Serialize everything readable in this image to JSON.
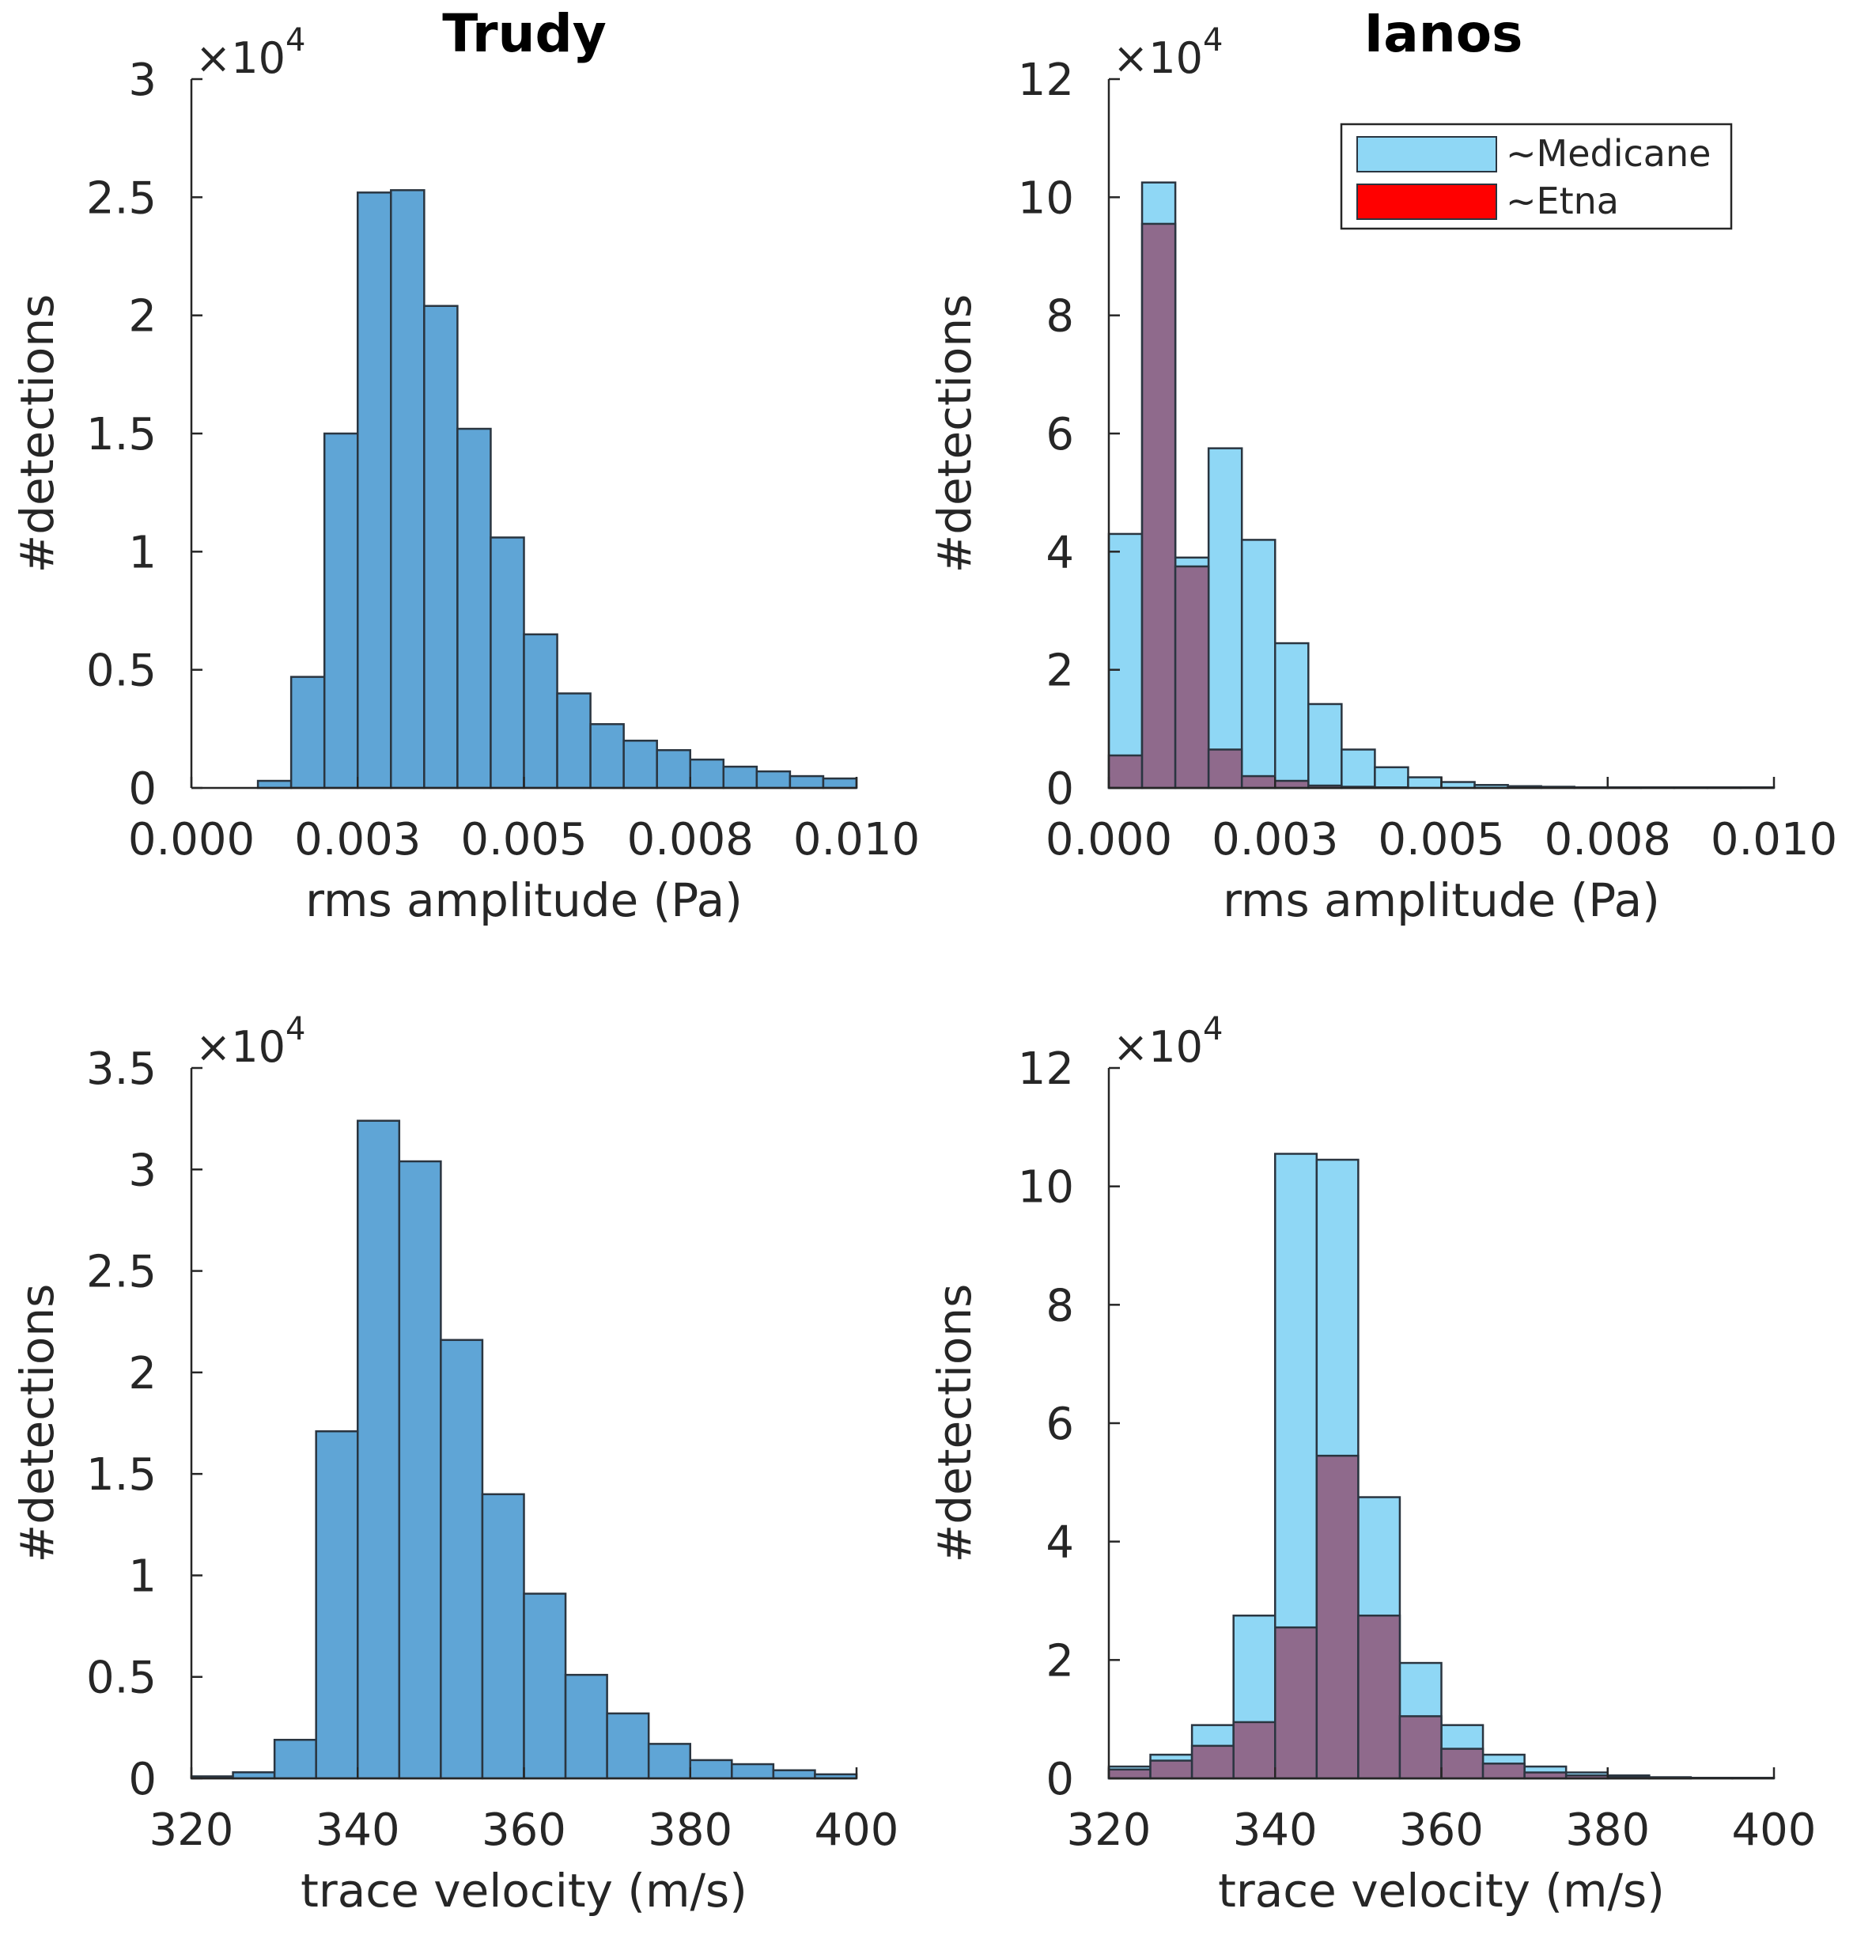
{
  "figure": {
    "titles": [
      "Trudy",
      "Ianos"
    ],
    "colors": {
      "trudy_bar": "#5fa5d6",
      "medicane_bar": "#8fd7f5",
      "etna_bar": "#ff0000",
      "overlap": "#8f6a8c",
      "edge": "#2a3540",
      "axis": "#262626"
    }
  },
  "chart_data": [
    {
      "id": "trudy-rms",
      "type": "bar",
      "title": "Trudy",
      "xlabel": "rms amplitude (Pa)",
      "ylabel": "#detections",
      "exponent_label": "×10^4",
      "exponent_base": "×10",
      "exponent_power": "4",
      "xlim": [
        0,
        0.01
      ],
      "ylim": [
        0,
        3
      ],
      "xticks": [
        0,
        0.0025,
        0.005,
        0.0075,
        0.01
      ],
      "xtick_labels": [
        "0.000",
        "0.003",
        "0.005",
        "0.008",
        "0.010"
      ],
      "yticks": [
        0,
        0.5,
        1,
        1.5,
        2,
        2.5,
        3
      ],
      "ytick_labels": [
        "0",
        "0.5",
        "1",
        "1.5",
        "2",
        "2.5",
        "3"
      ],
      "bin_width": 0.0005,
      "series": [
        {
          "name": "Trudy",
          "bin_start": 0.001,
          "values": [
            0.03,
            0.47,
            1.5,
            2.52,
            2.53,
            2.04,
            1.52,
            1.06,
            0.65,
            0.4,
            0.27,
            0.2,
            0.16,
            0.12,
            0.09,
            0.07,
            0.05,
            0.04
          ]
        }
      ]
    },
    {
      "id": "ianos-rms",
      "type": "bar",
      "title": "Ianos",
      "xlabel": "rms amplitude (Pa)",
      "ylabel": "#detections",
      "exponent_label": "×10^4",
      "exponent_base": "×10",
      "exponent_power": "4",
      "xlim": [
        0,
        0.01
      ],
      "ylim": [
        0,
        12
      ],
      "xticks": [
        0,
        0.0025,
        0.005,
        0.0075,
        0.01
      ],
      "xtick_labels": [
        "0.000",
        "0.003",
        "0.005",
        "0.008",
        "0.010"
      ],
      "yticks": [
        0,
        2,
        4,
        6,
        8,
        10,
        12
      ],
      "ytick_labels": [
        "0",
        "2",
        "4",
        "6",
        "8",
        "10",
        "12"
      ],
      "bin_width": 0.0005,
      "legend": {
        "location": "top-right",
        "entries": [
          "~Medicane",
          "~Etna"
        ]
      },
      "series": [
        {
          "name": "~Medicane",
          "bin_start": 0.0,
          "values": [
            4.3,
            10.25,
            3.9,
            5.75,
            4.2,
            2.45,
            1.42,
            0.65,
            0.35,
            0.18,
            0.1,
            0.05,
            0.03,
            0.02,
            0.01,
            0.01,
            0.01,
            0.01,
            0.01,
            0.01
          ]
        },
        {
          "name": "~Etna",
          "bin_start": 0.0,
          "values": [
            0.55,
            9.55,
            3.75,
            0.65,
            0.2,
            0.12,
            0.04,
            0.02,
            0.01,
            0,
            0,
            0,
            0,
            0,
            0,
            0,
            0,
            0,
            0,
            0
          ]
        }
      ]
    },
    {
      "id": "trudy-velocity",
      "type": "bar",
      "title": "",
      "xlabel": "trace velocity (m/s)",
      "ylabel": "#detections",
      "exponent_label": "×10^4",
      "exponent_base": "×10",
      "exponent_power": "4",
      "xlim": [
        320,
        400
      ],
      "ylim": [
        0,
        3.5
      ],
      "xticks": [
        320,
        340,
        360,
        380,
        400
      ],
      "xtick_labels": [
        "320",
        "340",
        "360",
        "380",
        "400"
      ],
      "yticks": [
        0,
        0.5,
        1,
        1.5,
        2,
        2.5,
        3,
        3.5
      ],
      "ytick_labels": [
        "0",
        "0.5",
        "1",
        "1.5",
        "2",
        "2.5",
        "3",
        "3.5"
      ],
      "bin_width": 5,
      "series": [
        {
          "name": "Trudy",
          "bin_start": 320,
          "values": [
            0.01,
            0.03,
            0.19,
            1.71,
            3.24,
            3.04,
            2.16,
            1.4,
            0.91,
            0.51,
            0.32,
            0.17,
            0.09,
            0.07,
            0.04,
            0.02
          ]
        }
      ]
    },
    {
      "id": "ianos-velocity",
      "type": "bar",
      "title": "",
      "xlabel": "trace velocity (m/s)",
      "ylabel": "#detections",
      "exponent_label": "×10^4",
      "exponent_base": "×10",
      "exponent_power": "4",
      "xlim": [
        320,
        400
      ],
      "ylim": [
        0,
        12
      ],
      "xticks": [
        320,
        340,
        360,
        380,
        400
      ],
      "xtick_labels": [
        "320",
        "340",
        "360",
        "380",
        "400"
      ],
      "yticks": [
        0,
        2,
        4,
        6,
        8,
        10,
        12
      ],
      "ytick_labels": [
        "0",
        "2",
        "4",
        "6",
        "8",
        "10",
        "12"
      ],
      "bin_width": 5,
      "series": [
        {
          "name": "~Medicane",
          "bin_start": 320,
          "values": [
            0.2,
            0.4,
            0.9,
            2.75,
            10.55,
            10.45,
            4.75,
            1.95,
            0.9,
            0.4,
            0.2,
            0.1,
            0.05,
            0.02,
            0.01,
            0.01
          ]
        },
        {
          "name": "~Etna",
          "bin_start": 320,
          "values": [
            0.15,
            0.3,
            0.55,
            0.95,
            2.55,
            5.45,
            2.75,
            1.05,
            0.5,
            0.25,
            0.1,
            0.05,
            0.02,
            0.01,
            0,
            0
          ]
        }
      ]
    }
  ]
}
